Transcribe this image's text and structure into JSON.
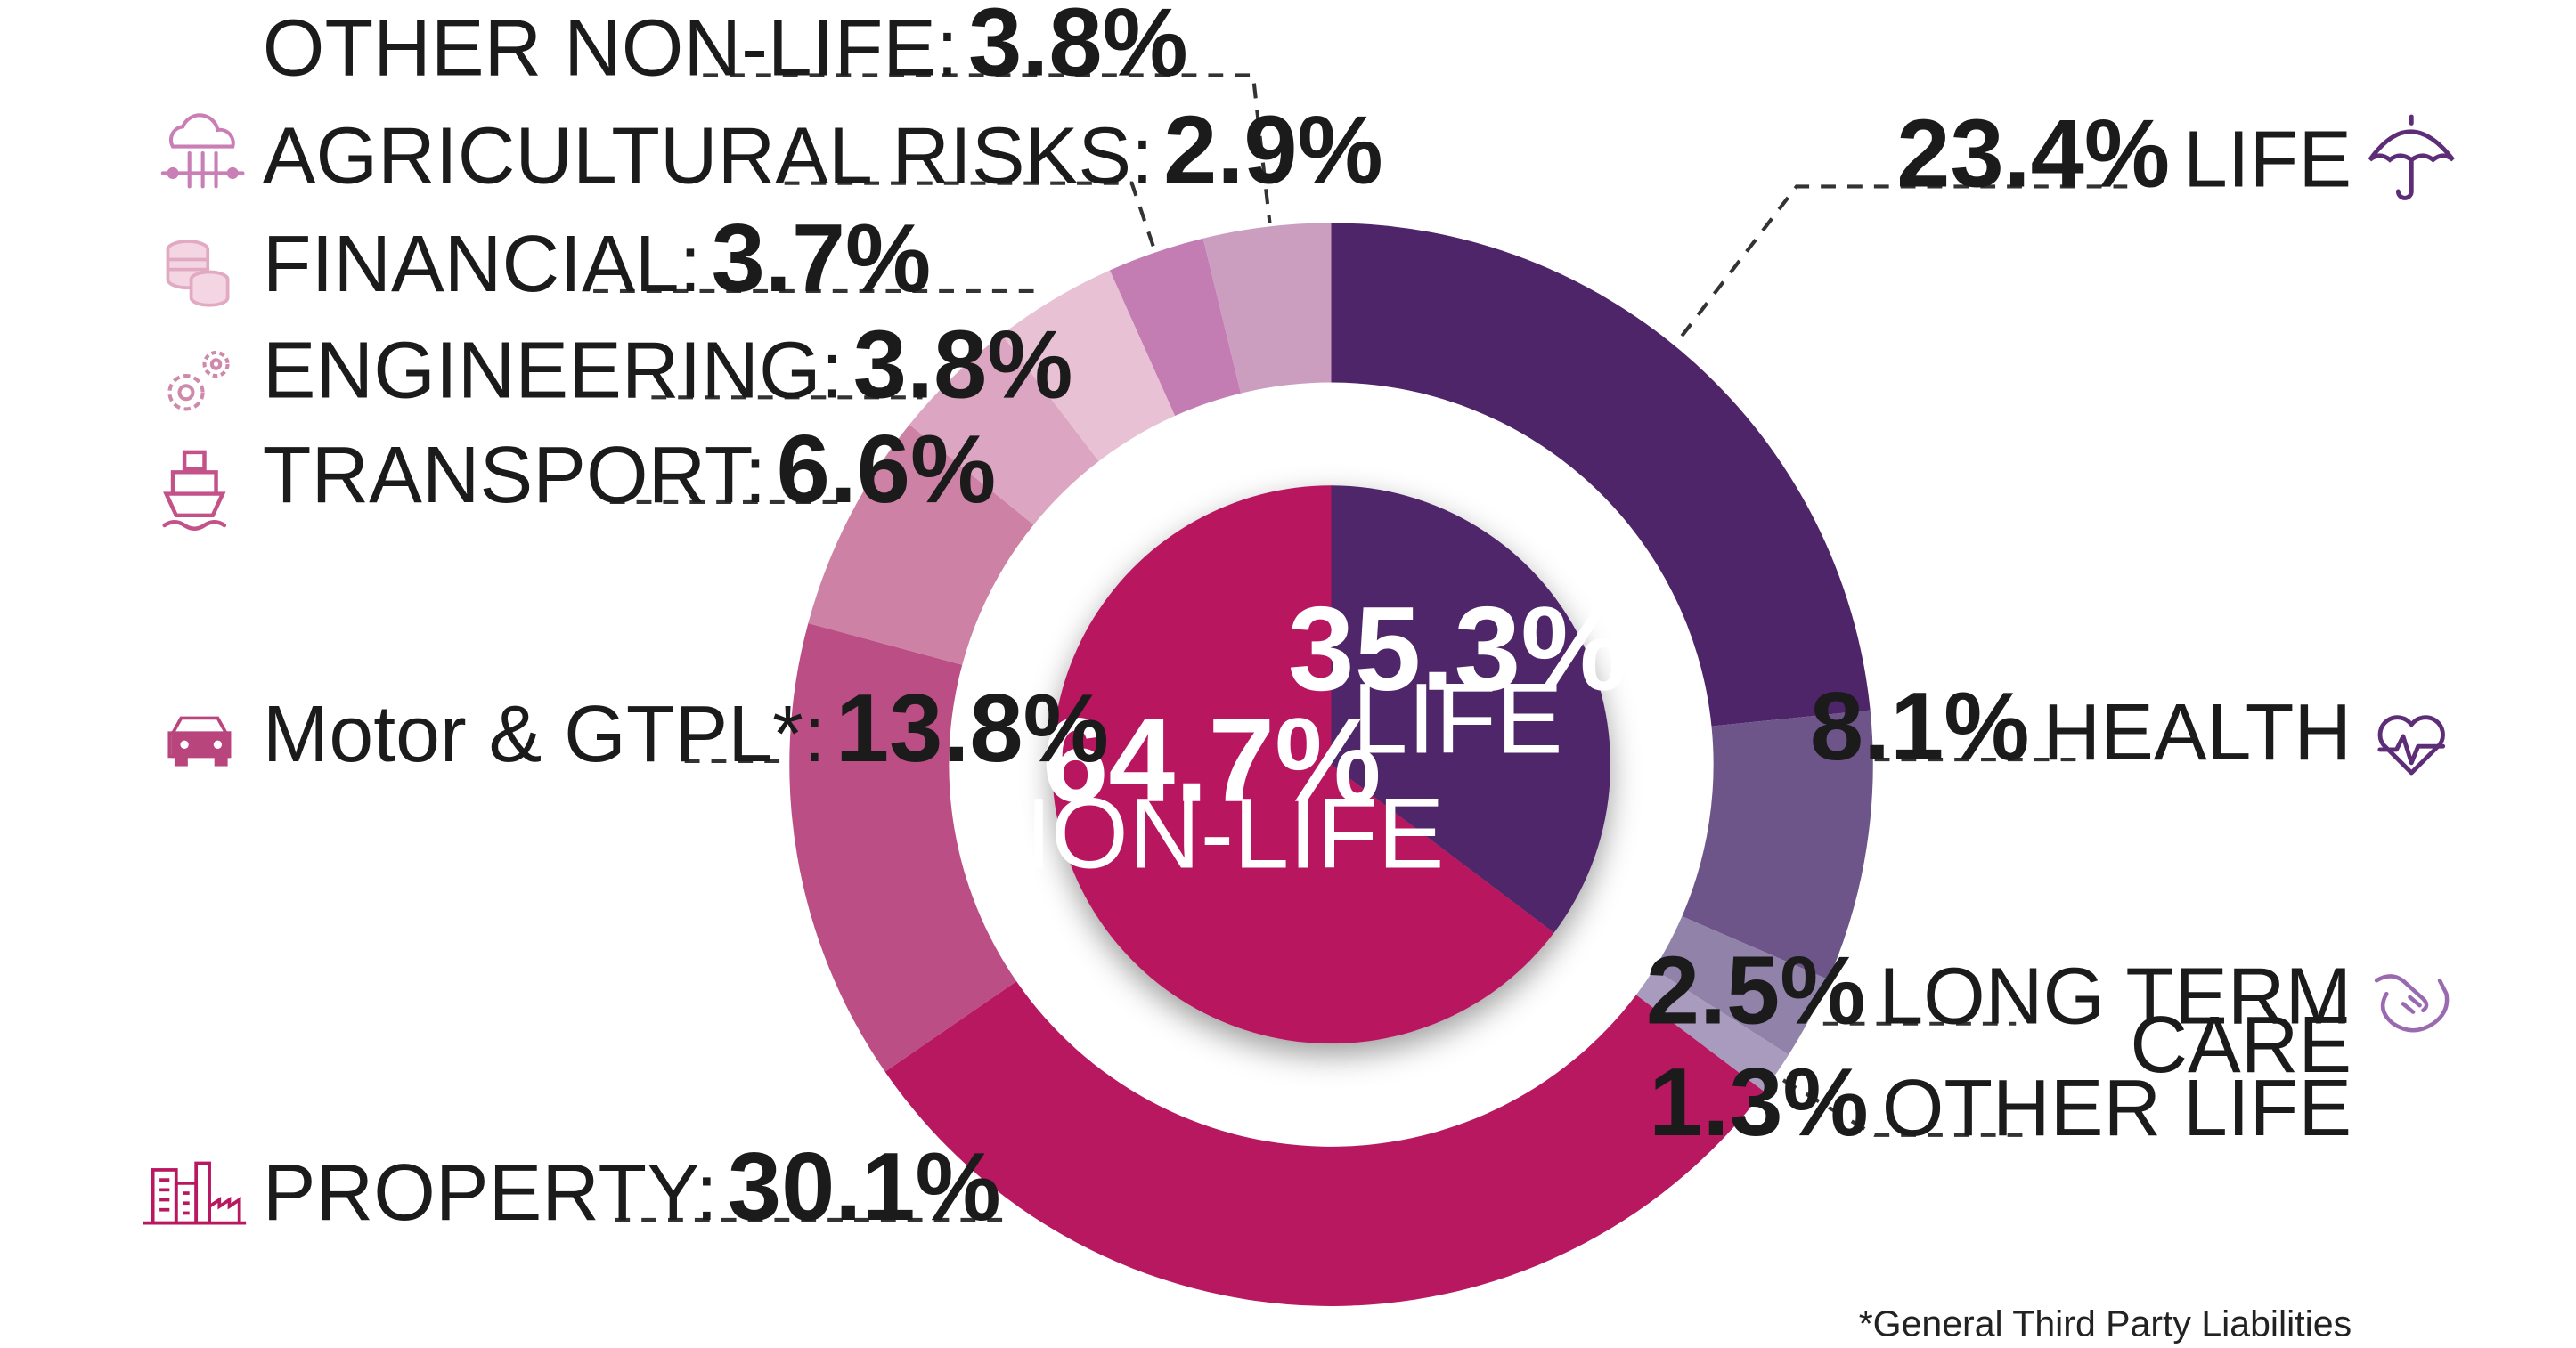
{
  "chart_data": {
    "type": "pie",
    "inner_pie": [
      {
        "label": "LIFE",
        "value_text": "35.3%",
        "value": 35.3,
        "color": "#4f2569"
      },
      {
        "label": "NON-LIFE",
        "value_text": "64.7%",
        "value": 64.7,
        "color": "#b8185f"
      }
    ],
    "outer_ring": [
      {
        "key": "life",
        "label": "LIFE",
        "value_text": "23.4%",
        "value": 23.4,
        "color": "#4f2569",
        "icon": "umbrella-icon"
      },
      {
        "key": "health",
        "label": "HEALTH",
        "value_text": "8.1%",
        "value": 8.1,
        "color": "#6d5589",
        "icon": "heart-pulse-icon"
      },
      {
        "key": "ltc",
        "label_line1": "LONG TERM",
        "label_line2": "CARE",
        "value_text": "2.5%",
        "value": 2.5,
        "color": "#9082a8",
        "icon": "caring-hands-icon"
      },
      {
        "key": "otherlife",
        "label": "OTHER LIFE",
        "value_text": "1.3%",
        "value": 1.3,
        "color": "#a99bbd"
      },
      {
        "key": "property",
        "label": "PROPERTY:",
        "value_text": "30.1%",
        "value": 30.1,
        "color": "#b8185f",
        "icon": "buildings-icon"
      },
      {
        "key": "motor",
        "label": "Motor & GTPL*:",
        "value_text": "13.8%",
        "value": 13.8,
        "color": "#bb4e84",
        "icon": "car-icon"
      },
      {
        "key": "transport",
        "label": "TRANSPORT:",
        "value_text": "6.6%",
        "value": 6.6,
        "color": "#cd81a4",
        "icon": "ship-icon"
      },
      {
        "key": "engineering",
        "label": "ENGINEERING:",
        "value_text": "3.8%",
        "value": 3.8,
        "color": "#dca6c2",
        "icon": "gears-icon"
      },
      {
        "key": "financial",
        "label": "FINANCIAL:",
        "value_text": "3.7%",
        "value": 3.7,
        "color": "#e8c2d4",
        "icon": "coins-icon"
      },
      {
        "key": "agri",
        "label": "AGRICULTURAL RISKS:",
        "value_text": "2.9%",
        "value": 2.9,
        "color": "#c47db3",
        "icon": "cloud-rain-icon"
      },
      {
        "key": "othernonlife",
        "label": "OTHER NON-LIFE:",
        "value_text": "3.8%",
        "value": 3.8,
        "color": "#cb9dbf"
      }
    ],
    "legend": "none"
  },
  "footnote": "*General Third Party Liabilities"
}
